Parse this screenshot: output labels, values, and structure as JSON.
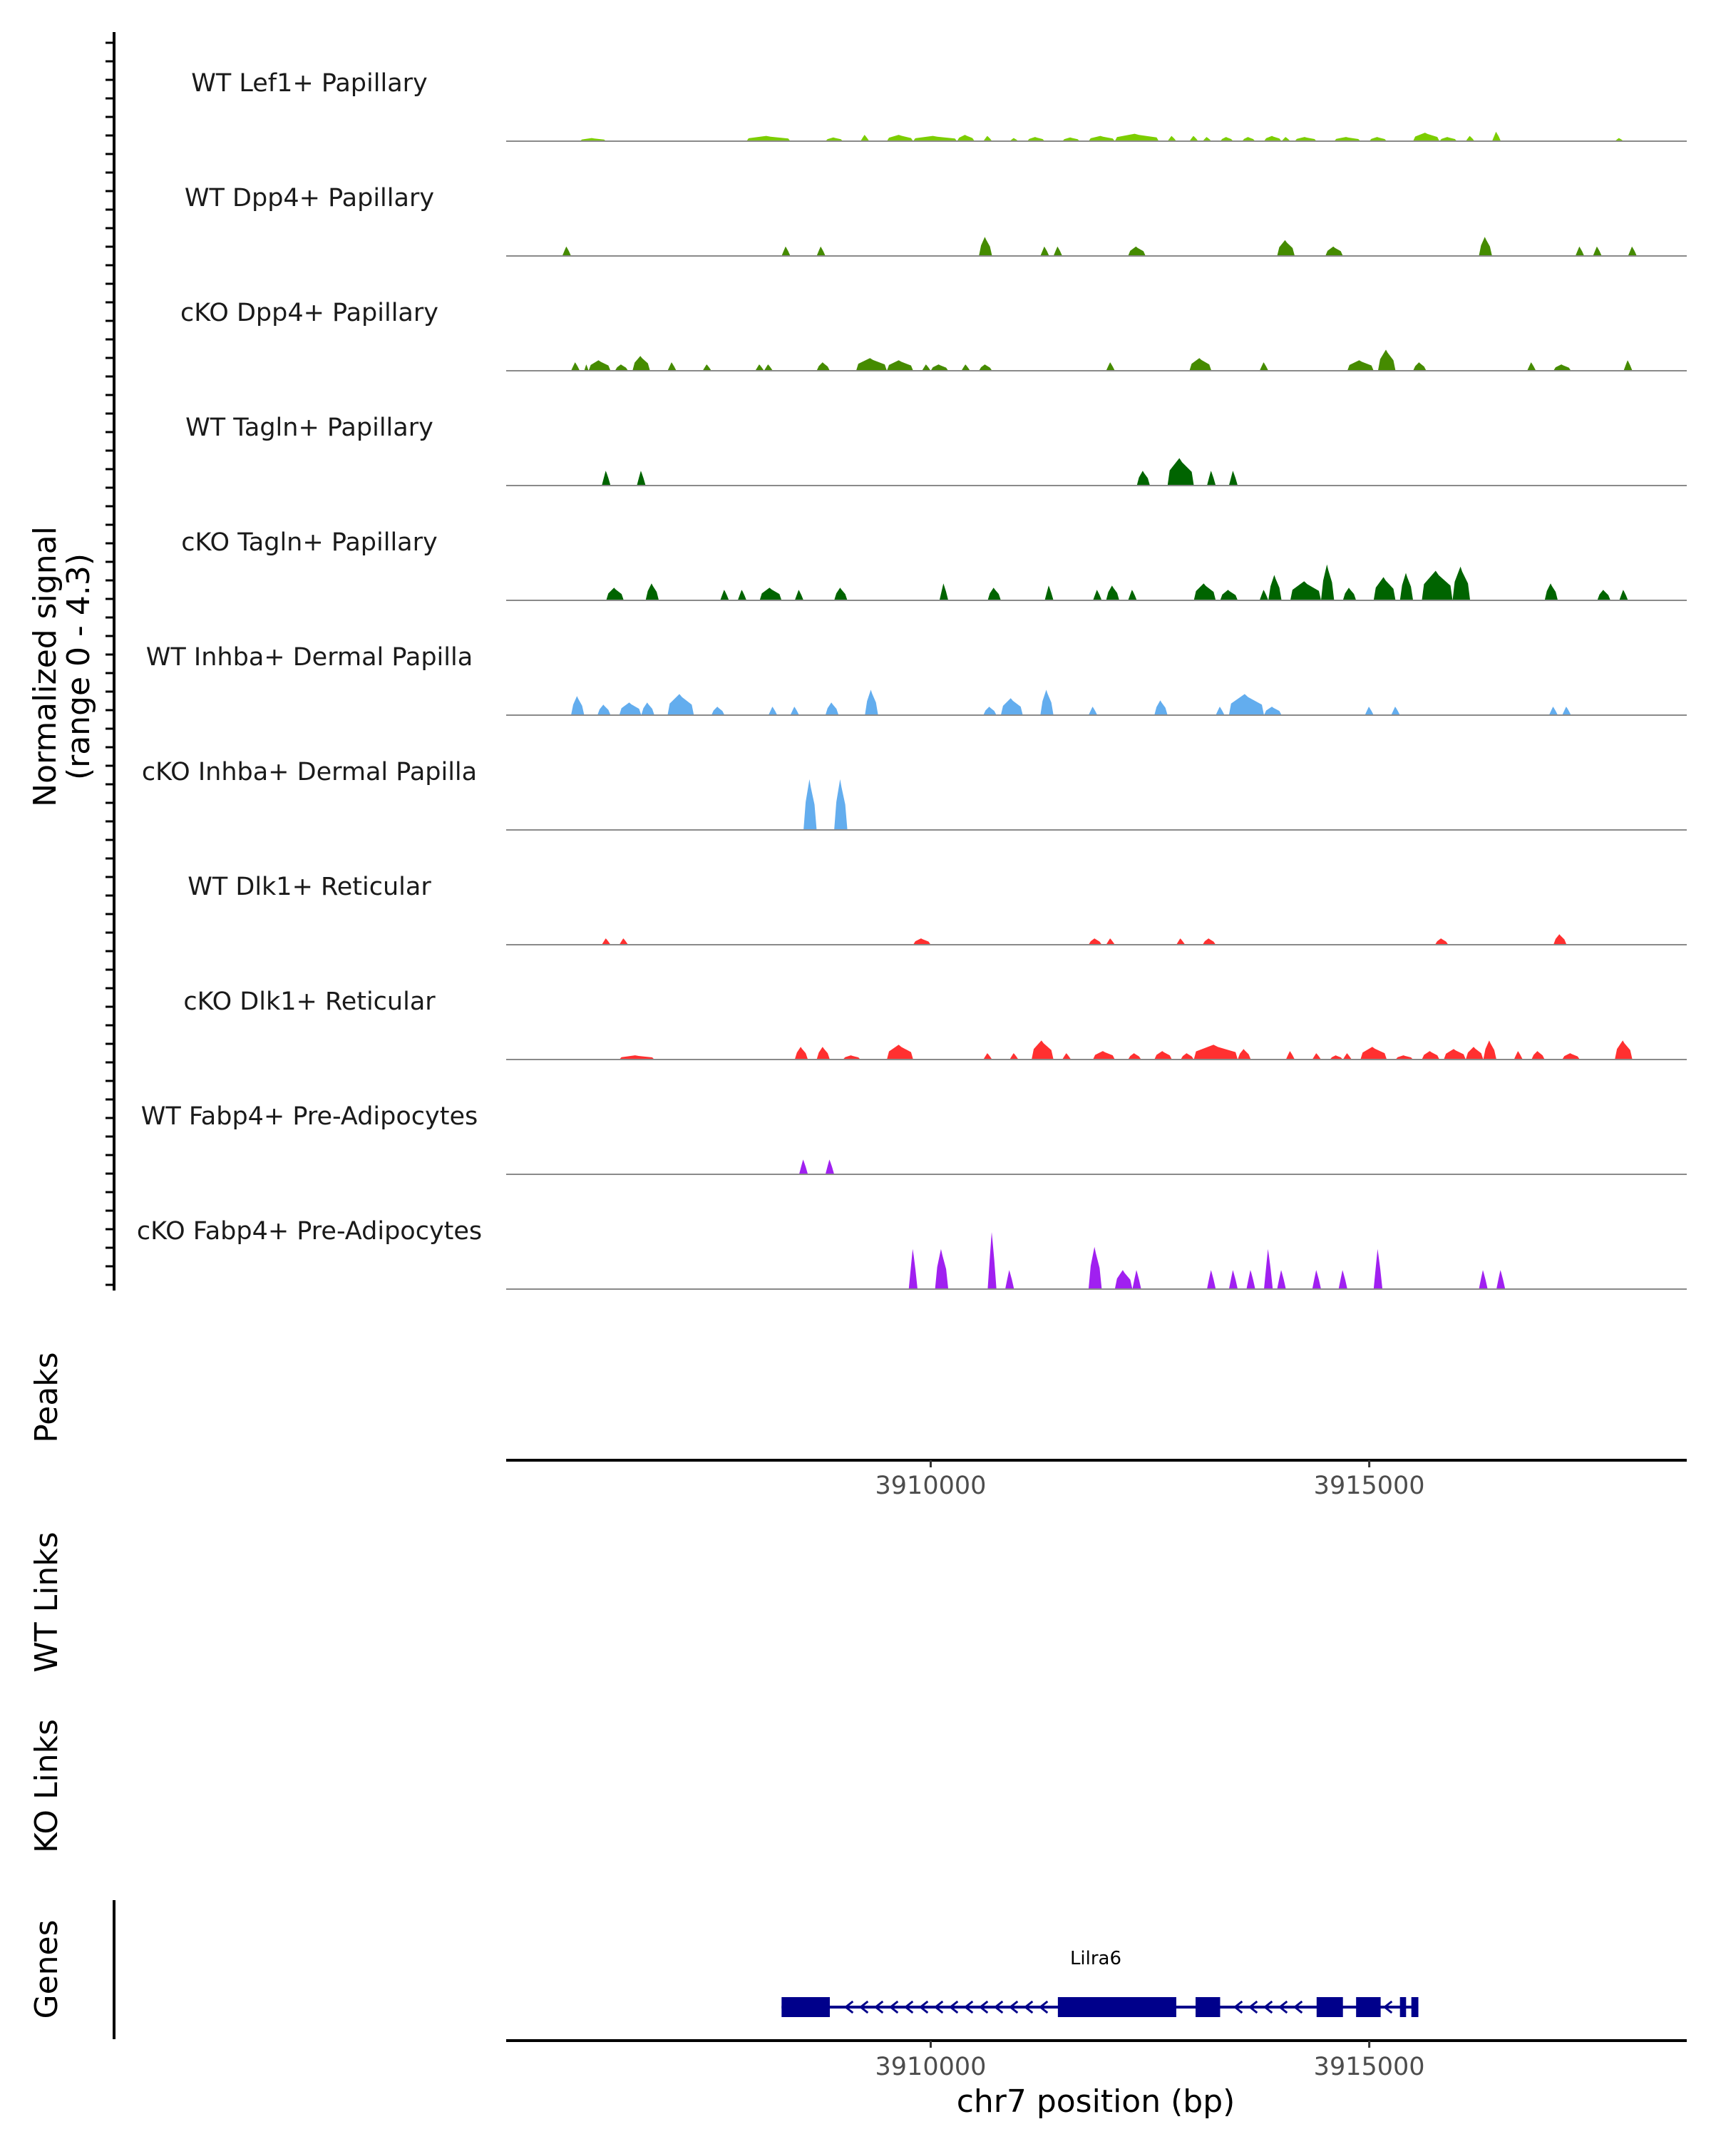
{
  "chart_data": {
    "type": "area",
    "title": "",
    "signal_axis_label": "Normalized signal",
    "signal_range_label": "(range 0 - 4.3)",
    "ylim": [
      0,
      4.3
    ],
    "xlabel": "chr7 position (bp)",
    "xlim": [
      3905160,
      3918620
    ],
    "x_ticks": [
      3910000,
      3915000
    ],
    "x_tick_labels": [
      "3910000",
      "3915000"
    ],
    "track_labels": {
      "peaks": "Peaks",
      "wt_links": "WT Links",
      "ko_links": "KO Links",
      "genes": "Genes"
    },
    "gene": {
      "name": "Lilra6",
      "strand": "-",
      "start": 3908300,
      "end": 3915560,
      "exons": [
        [
          3908300,
          3908850
        ],
        [
          3911450,
          3912800
        ],
        [
          3913020,
          3913300
        ],
        [
          3914400,
          3914700
        ],
        [
          3914850,
          3915130
        ],
        [
          3915350,
          3915420
        ],
        [
          3915480,
          3915560
        ]
      ]
    },
    "series": [
      {
        "name": "WT Lef1+ Papillary",
        "color": "#7CCD00",
        "peaks": [
          [
            3906000,
            3906300,
            0.15
          ],
          [
            3907900,
            3908400,
            0.25
          ],
          [
            3908800,
            3909000,
            0.18
          ],
          [
            3909200,
            3909300,
            0.3
          ],
          [
            3909500,
            3909800,
            0.3
          ],
          [
            3909800,
            3910300,
            0.25
          ],
          [
            3910300,
            3910500,
            0.3
          ],
          [
            3910600,
            3910700,
            0.25
          ],
          [
            3910900,
            3911000,
            0.15
          ],
          [
            3911100,
            3911300,
            0.2
          ],
          [
            3911500,
            3911700,
            0.18
          ],
          [
            3911800,
            3912100,
            0.25
          ],
          [
            3912100,
            3912600,
            0.35
          ],
          [
            3912700,
            3912800,
            0.25
          ],
          [
            3912950,
            3913050,
            0.25
          ],
          [
            3913100,
            3913200,
            0.2
          ],
          [
            3913300,
            3913450,
            0.2
          ],
          [
            3913550,
            3913700,
            0.2
          ],
          [
            3913800,
            3914000,
            0.25
          ],
          [
            3914000,
            3914100,
            0.2
          ],
          [
            3914150,
            3914400,
            0.2
          ],
          [
            3914600,
            3914900,
            0.2
          ],
          [
            3915000,
            3915200,
            0.2
          ],
          [
            3915500,
            3915800,
            0.4
          ],
          [
            3915800,
            3916000,
            0.2
          ],
          [
            3916100,
            3916200,
            0.25
          ],
          [
            3916400,
            3916500,
            0.45
          ],
          [
            3917800,
            3917900,
            0.15
          ]
        ]
      },
      {
        "name": "WT Dpp4+ Papillary",
        "color": "#458B00",
        "peaks": [
          [
            3905800,
            3905900,
            0.45
          ],
          [
            3908300,
            3908400,
            0.45
          ],
          [
            3908700,
            3908800,
            0.45
          ],
          [
            3910550,
            3910700,
            0.9
          ],
          [
            3911250,
            3911350,
            0.45
          ],
          [
            3911400,
            3911500,
            0.45
          ],
          [
            3912250,
            3912450,
            0.45
          ],
          [
            3913950,
            3914150,
            0.75
          ],
          [
            3914500,
            3914700,
            0.45
          ],
          [
            3916250,
            3916400,
            0.9
          ],
          [
            3917350,
            3917450,
            0.45
          ],
          [
            3917550,
            3917650,
            0.45
          ],
          [
            3917950,
            3918050,
            0.45
          ]
        ]
      },
      {
        "name": "cKO Dpp4+ Papillary",
        "color": "#458B00",
        "peaks": [
          [
            3905900,
            3906000,
            0.4
          ],
          [
            3906050,
            3906100,
            0.3
          ],
          [
            3906100,
            3906350,
            0.5
          ],
          [
            3906400,
            3906550,
            0.3
          ],
          [
            3906600,
            3906800,
            0.7
          ],
          [
            3907000,
            3907100,
            0.4
          ],
          [
            3907400,
            3907500,
            0.3
          ],
          [
            3908000,
            3908100,
            0.3
          ],
          [
            3908100,
            3908200,
            0.3
          ],
          [
            3908700,
            3908850,
            0.4
          ],
          [
            3909150,
            3909500,
            0.6
          ],
          [
            3909500,
            3909800,
            0.5
          ],
          [
            3909900,
            3910000,
            0.3
          ],
          [
            3910000,
            3910200,
            0.3
          ],
          [
            3910350,
            3910450,
            0.3
          ],
          [
            3910550,
            3910700,
            0.3
          ],
          [
            3912000,
            3912100,
            0.4
          ],
          [
            3912950,
            3913200,
            0.6
          ],
          [
            3913750,
            3913850,
            0.4
          ],
          [
            3914750,
            3915050,
            0.5
          ],
          [
            3915100,
            3915300,
            1.0
          ],
          [
            3915500,
            3915650,
            0.4
          ],
          [
            3916800,
            3916900,
            0.4
          ],
          [
            3917100,
            3917300,
            0.3
          ],
          [
            3917900,
            3918000,
            0.5
          ]
        ]
      },
      {
        "name": "WT Tagln+ Papillary",
        "color": "#006400",
        "peaks": [
          [
            3906250,
            3906350,
            0.7
          ],
          [
            3906650,
            3906750,
            0.7
          ],
          [
            3912350,
            3912500,
            0.7
          ],
          [
            3912700,
            3913000,
            1.3
          ],
          [
            3913150,
            3913250,
            0.7
          ],
          [
            3913400,
            3913500,
            0.7
          ]
        ]
      },
      {
        "name": "cKO Tagln+ Papillary",
        "color": "#006400",
        "peaks": [
          [
            3906300,
            3906500,
            0.6
          ],
          [
            3906750,
            3906900,
            0.8
          ],
          [
            3907600,
            3907700,
            0.5
          ],
          [
            3907800,
            3907900,
            0.5
          ],
          [
            3908050,
            3908300,
            0.6
          ],
          [
            3908450,
            3908550,
            0.5
          ],
          [
            3908900,
            3909050,
            0.6
          ],
          [
            3910100,
            3910200,
            0.8
          ],
          [
            3910650,
            3910800,
            0.6
          ],
          [
            3911300,
            3911400,
            0.7
          ],
          [
            3911850,
            3911950,
            0.5
          ],
          [
            3912000,
            3912150,
            0.7
          ],
          [
            3912250,
            3912350,
            0.5
          ],
          [
            3913000,
            3913250,
            0.8
          ],
          [
            3913300,
            3913500,
            0.5
          ],
          [
            3913750,
            3913850,
            0.5
          ],
          [
            3913850,
            3914000,
            1.2
          ],
          [
            3914100,
            3914450,
            0.9
          ],
          [
            3914450,
            3914600,
            1.7
          ],
          [
            3914700,
            3914850,
            0.6
          ],
          [
            3915050,
            3915300,
            1.1
          ],
          [
            3915350,
            3915500,
            1.3
          ],
          [
            3915600,
            3915950,
            1.4
          ],
          [
            3915950,
            3916150,
            1.6
          ],
          [
            3917000,
            3917150,
            0.8
          ],
          [
            3917600,
            3917750,
            0.5
          ],
          [
            3917850,
            3917950,
            0.5
          ]
        ]
      },
      {
        "name": "WT Inhba+ Dermal Papilla",
        "color": "#63ADEE",
        "peaks": [
          [
            3905900,
            3906050,
            0.9
          ],
          [
            3906200,
            3906350,
            0.5
          ],
          [
            3906450,
            3906700,
            0.6
          ],
          [
            3906700,
            3906850,
            0.6
          ],
          [
            3907000,
            3907300,
            1.0
          ],
          [
            3907500,
            3907650,
            0.4
          ],
          [
            3908150,
            3908250,
            0.4
          ],
          [
            3908400,
            3908500,
            0.4
          ],
          [
            3908800,
            3908950,
            0.6
          ],
          [
            3909250,
            3909400,
            1.2
          ],
          [
            3910600,
            3910750,
            0.4
          ],
          [
            3910800,
            3911050,
            0.8
          ],
          [
            3911250,
            3911400,
            1.2
          ],
          [
            3911800,
            3911900,
            0.4
          ],
          [
            3912550,
            3912700,
            0.7
          ],
          [
            3913250,
            3913350,
            0.4
          ],
          [
            3913400,
            3913800,
            1.0
          ],
          [
            3913800,
            3914000,
            0.4
          ],
          [
            3914950,
            3915050,
            0.4
          ],
          [
            3915250,
            3915350,
            0.4
          ],
          [
            3917050,
            3917150,
            0.4
          ],
          [
            3917200,
            3917300,
            0.4
          ]
        ]
      },
      {
        "name": "cKO Inhba+ Dermal Papilla",
        "color": "#63ADEE",
        "peaks": [
          [
            3908550,
            3908700,
            2.4
          ],
          [
            3908900,
            3909050,
            2.4
          ]
        ]
      },
      {
        "name": "WT Dlk1+ Reticular",
        "color": "#FF3030",
        "peaks": [
          [
            3906250,
            3906350,
            0.3
          ],
          [
            3906450,
            3906550,
            0.3
          ],
          [
            3909800,
            3910000,
            0.3
          ],
          [
            3911800,
            3911950,
            0.3
          ],
          [
            3912000,
            3912100,
            0.3
          ],
          [
            3912800,
            3912900,
            0.3
          ],
          [
            3913100,
            3913250,
            0.3
          ],
          [
            3915750,
            3915900,
            0.3
          ],
          [
            3917100,
            3917250,
            0.5
          ]
        ]
      },
      {
        "name": "cKO Dlk1+ Reticular",
        "color": "#FF3030",
        "peaks": [
          [
            3906450,
            3906850,
            0.2
          ],
          [
            3908450,
            3908600,
            0.6
          ],
          [
            3908700,
            3908850,
            0.6
          ],
          [
            3909000,
            3909200,
            0.2
          ],
          [
            3909500,
            3909800,
            0.7
          ],
          [
            3910600,
            3910700,
            0.3
          ],
          [
            3910900,
            3911000,
            0.3
          ],
          [
            3911150,
            3911400,
            0.9
          ],
          [
            3911500,
            3911600,
            0.3
          ],
          [
            3911850,
            3912100,
            0.4
          ],
          [
            3912250,
            3912400,
            0.3
          ],
          [
            3912550,
            3912750,
            0.4
          ],
          [
            3912850,
            3913000,
            0.3
          ],
          [
            3913000,
            3913500,
            0.7
          ],
          [
            3913500,
            3913650,
            0.5
          ],
          [
            3914050,
            3914150,
            0.4
          ],
          [
            3914350,
            3914450,
            0.3
          ],
          [
            3914550,
            3914700,
            0.2
          ],
          [
            3914700,
            3914800,
            0.3
          ],
          [
            3914900,
            3915200,
            0.6
          ],
          [
            3915300,
            3915500,
            0.2
          ],
          [
            3915600,
            3915800,
            0.4
          ],
          [
            3915850,
            3916100,
            0.5
          ],
          [
            3916100,
            3916300,
            0.6
          ],
          [
            3916300,
            3916450,
            0.9
          ],
          [
            3916650,
            3916750,
            0.4
          ],
          [
            3916850,
            3917000,
            0.4
          ],
          [
            3917200,
            3917400,
            0.3
          ],
          [
            3917800,
            3918000,
            0.9
          ]
        ]
      },
      {
        "name": "WT Fabp4+ Pre-Adipocytes",
        "color": "#A020F0",
        "peaks": [
          [
            3908500,
            3908600,
            0.7
          ],
          [
            3908800,
            3908900,
            0.7
          ]
        ]
      },
      {
        "name": "cKO Fabp4+ Pre-Adipocytes",
        "color": "#A020F0",
        "peaks": [
          [
            3909750,
            3909850,
            1.9
          ],
          [
            3910050,
            3910200,
            1.9
          ],
          [
            3910650,
            3910750,
            2.7
          ],
          [
            3910850,
            3910950,
            0.9
          ],
          [
            3911800,
            3911950,
            2.0
          ],
          [
            3912100,
            3912300,
            0.9
          ],
          [
            3912300,
            3912400,
            0.9
          ],
          [
            3913150,
            3913250,
            0.9
          ],
          [
            3913400,
            3913500,
            0.9
          ],
          [
            3913600,
            3913700,
            0.9
          ],
          [
            3913800,
            3913900,
            1.9
          ],
          [
            3913950,
            3914050,
            0.9
          ],
          [
            3914350,
            3914450,
            0.9
          ],
          [
            3914650,
            3914750,
            0.9
          ],
          [
            3915050,
            3915150,
            1.9
          ],
          [
            3916250,
            3916350,
            0.9
          ],
          [
            3916450,
            3916550,
            0.9
          ]
        ]
      }
    ]
  }
}
